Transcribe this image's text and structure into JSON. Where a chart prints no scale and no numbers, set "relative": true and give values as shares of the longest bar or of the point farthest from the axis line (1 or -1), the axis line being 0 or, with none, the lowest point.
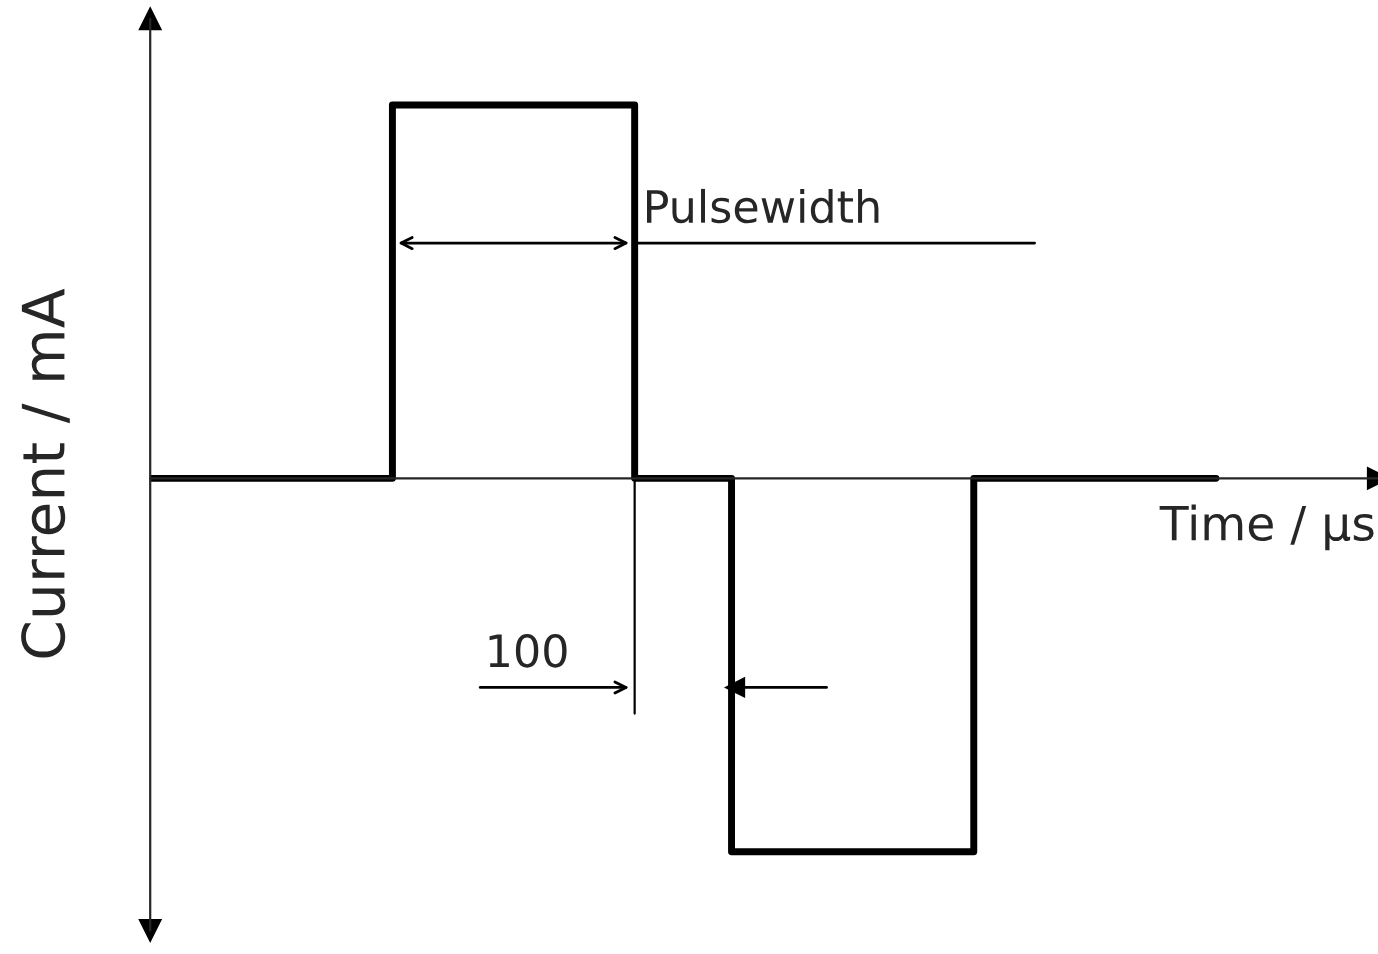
{
  "chart_data": {
    "type": "step",
    "relative": true,
    "categories": [
      null,
      null,
      null,
      null,
      null,
      null,
      null,
      null,
      null,
      null,
      null,
      null,
      null,
      null,
      null,
      null,
      null,
      null,
      null,
      null,
      null,
      null,
      null
    ],
    "series": [
      {
        "color": "#000000",
        "values": [
          0,
          0,
          0,
          0,
          0,
          1,
          1,
          1,
          1,
          1,
          0,
          0,
          -1,
          -1,
          -1,
          -1,
          -1,
          0,
          0,
          0,
          0,
          0,
          0
        ]
      }
    ],
    "xlabel": "Time / µs",
    "ylabel": "Current / mA",
    "annotations": [
      "Pulsewidth",
      "100"
    ],
    "grid": false,
    "legend": false,
    "marker": "none",
    "line_style": "solid"
  }
}
